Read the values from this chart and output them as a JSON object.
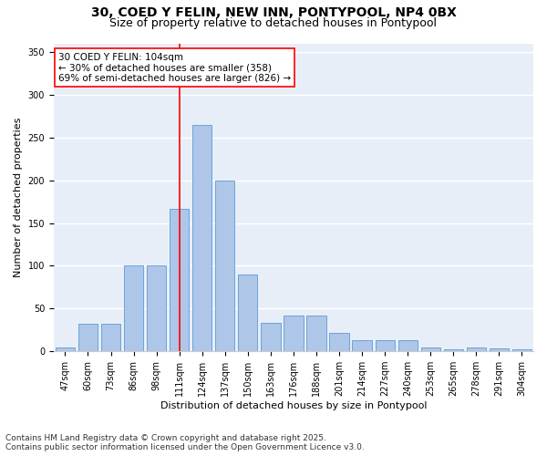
{
  "title1": "30, COED Y FELIN, NEW INN, PONTYPOOL, NP4 0BX",
  "title2": "Size of property relative to detached houses in Pontypool",
  "xlabel": "Distribution of detached houses by size in Pontypool",
  "ylabel": "Number of detached properties",
  "categories": [
    "47sqm",
    "60sqm",
    "73sqm",
    "86sqm",
    "98sqm",
    "111sqm",
    "124sqm",
    "137sqm",
    "150sqm",
    "163sqm",
    "176sqm",
    "188sqm",
    "201sqm",
    "214sqm",
    "227sqm",
    "240sqm",
    "253sqm",
    "265sqm",
    "278sqm",
    "291sqm",
    "304sqm"
  ],
  "values": [
    5,
    32,
    32,
    100,
    100,
    167,
    265,
    200,
    90,
    33,
    42,
    42,
    22,
    13,
    13,
    13,
    5,
    2,
    5,
    3,
    2
  ],
  "bar_color": "#aec6e8",
  "bar_edge_color": "#5b9bd5",
  "vline_x_index": 5.0,
  "vline_color": "red",
  "annotation_text": "30 COED Y FELIN: 104sqm\n← 30% of detached houses are smaller (358)\n69% of semi-detached houses are larger (826) →",
  "annotation_box_color": "white",
  "annotation_box_edge": "red",
  "ylim": [
    0,
    360
  ],
  "yticks": [
    0,
    50,
    100,
    150,
    200,
    250,
    300,
    350
  ],
  "background_color": "#e8eef8",
  "footer": "Contains HM Land Registry data © Crown copyright and database right 2025.\nContains public sector information licensed under the Open Government Licence v3.0.",
  "title1_fontsize": 10,
  "title2_fontsize": 9,
  "xlabel_fontsize": 8,
  "ylabel_fontsize": 8,
  "tick_fontsize": 7,
  "footer_fontsize": 6.5,
  "annot_fontsize": 7.5
}
